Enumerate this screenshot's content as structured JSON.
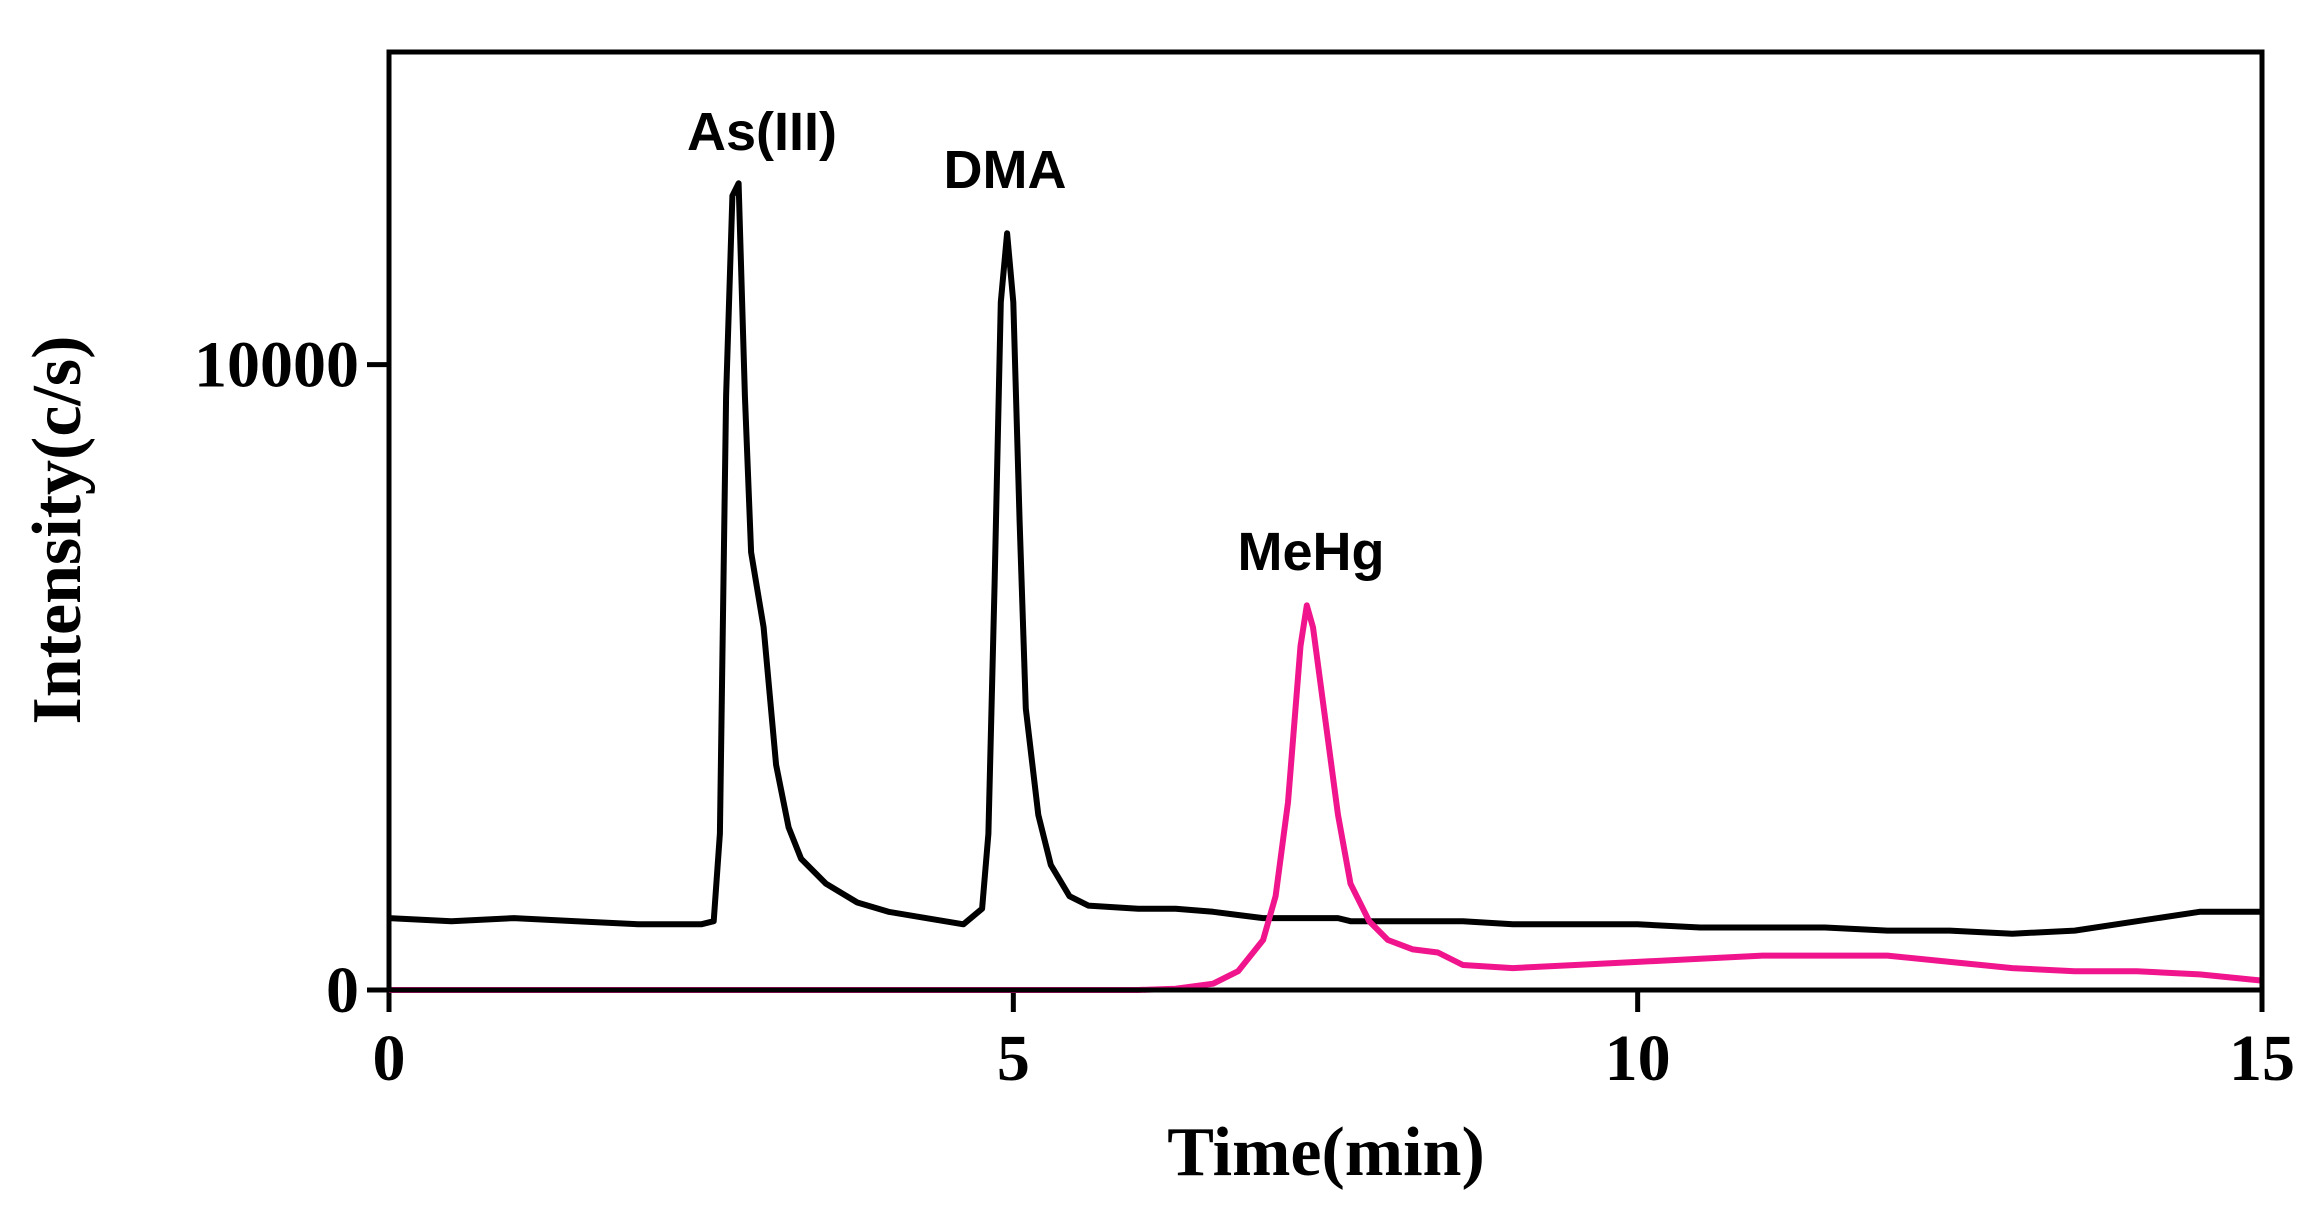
{
  "chart_data": {
    "type": "line",
    "xlabel": "Time(min)",
    "ylabel": "Intensity(c/s)",
    "xlim": [
      0,
      15
    ],
    "xticks": [
      0,
      5,
      10,
      15
    ],
    "ylim": [
      0,
      15000
    ],
    "yticks": [
      0,
      10000
    ],
    "annotations": [
      "As(III)",
      "DMA",
      "MeHg"
    ],
    "x": [
      0,
      0.5,
      1,
      1.5,
      2,
      2.5,
      2.6,
      2.65,
      2.7,
      2.75,
      2.8,
      2.85,
      2.9,
      3.0,
      3.1,
      3.2,
      3.3,
      3.5,
      3.75,
      4,
      4.3,
      4.6,
      4.75,
      4.8,
      4.85,
      4.9,
      4.95,
      5.0,
      5.05,
      5.1,
      5.2,
      5.3,
      5.45,
      5.6,
      6,
      6.3,
      6.6,
      6.8,
      7.0,
      7.1,
      7.2,
      7.3,
      7.35,
      7.4,
      7.5,
      7.6,
      7.7,
      7.85,
      8,
      8.2,
      8.4,
      8.6,
      9,
      9.5,
      10,
      10.5,
      11,
      11.5,
      12,
      12.5,
      13,
      13.5,
      14,
      14.5,
      15
    ],
    "series": [
      {
        "color": "#000000",
        "values": [
          1150,
          1100,
          1150,
          1100,
          1050,
          1050,
          1100,
          2500,
          9500,
          12700,
          12900,
          9500,
          7000,
          5800,
          3600,
          2600,
          2100,
          1700,
          1400,
          1250,
          1150,
          1050,
          1300,
          2500,
          6500,
          11000,
          12100,
          11000,
          7500,
          4500,
          2800,
          2000,
          1500,
          1350,
          1300,
          1300,
          1250,
          1200,
          1150,
          1150,
          1150,
          1150,
          1150,
          1150,
          1150,
          1150,
          1100,
          1100,
          1100,
          1100,
          1100,
          1100,
          1050,
          1050,
          1050,
          1000,
          1000,
          1000,
          950,
          950,
          900,
          950,
          1100,
          1250,
          1250
        ]
      },
      {
        "color": "#f0158c",
        "values": [
          0,
          0,
          0,
          0,
          0,
          0,
          0,
          0,
          0,
          0,
          0,
          0,
          0,
          0,
          0,
          0,
          0,
          0,
          0,
          0,
          0,
          0,
          0,
          0,
          0,
          0,
          0,
          0,
          0,
          0,
          0,
          0,
          0,
          0,
          0,
          20,
          100,
          300,
          800,
          1500,
          3000,
          5500,
          6150,
          5800,
          4300,
          2800,
          1700,
          1100,
          800,
          650,
          600,
          400,
          350,
          400,
          450,
          500,
          550,
          550,
          550,
          450,
          350,
          300,
          300,
          250,
          150
        ]
      }
    ]
  }
}
